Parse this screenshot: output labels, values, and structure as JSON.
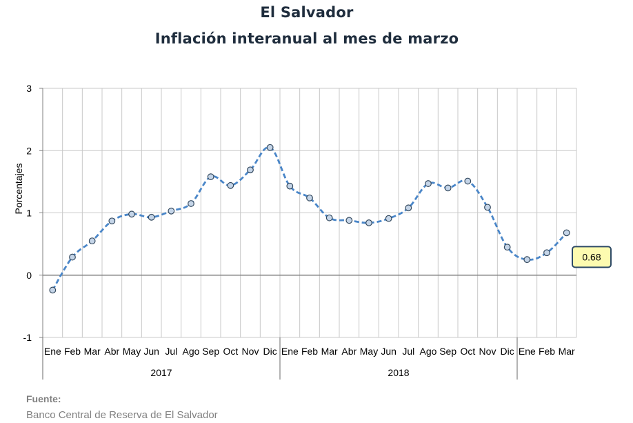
{
  "chart_data": {
    "type": "line",
    "title": "El Salvador",
    "subtitle": "Inflación interanual al mes de marzo",
    "ylabel": "Porcentajes",
    "xlabel": "",
    "ylim": [
      -1,
      3
    ],
    "yticks": [
      -1,
      0,
      1,
      2,
      3
    ],
    "grid": true,
    "line_style": "dashed",
    "line_color": "#4a86c8",
    "marker_fill": "#c5d5e8",
    "marker_edge": "#34495e",
    "categories": [
      "Ene",
      "Feb",
      "Mar",
      "Abr",
      "May",
      "Jun",
      "Jul",
      "Ago",
      "Sep",
      "Oct",
      "Nov",
      "Dic",
      "Ene",
      "Feb",
      "Mar",
      "Abr",
      "May",
      "Jun",
      "Jul",
      "Ago",
      "Sep",
      "Oct",
      "Nov",
      "Dic",
      "Ene",
      "Feb",
      "Mar"
    ],
    "groups": [
      {
        "label": "2017",
        "count": 12
      },
      {
        "label": "2018",
        "count": 12
      },
      {
        "label": "",
        "count": 3
      }
    ],
    "series": [
      {
        "values": [
          -0.24,
          0.29,
          0.55,
          0.87,
          0.98,
          0.93,
          1.03,
          1.15,
          1.58,
          1.44,
          1.69,
          2.05,
          1.43,
          1.24,
          0.92,
          0.88,
          0.84,
          0.91,
          1.08,
          1.47,
          1.4,
          1.51,
          1.09,
          0.45,
          0.25,
          0.36,
          0.68
        ]
      }
    ],
    "callout": {
      "label": "0.68",
      "fill": "#fdfbb0",
      "border": "#2e4a66"
    }
  },
  "source": {
    "label": "Fuente:",
    "text": "Banco Central de Reserva de El Salvador"
  }
}
